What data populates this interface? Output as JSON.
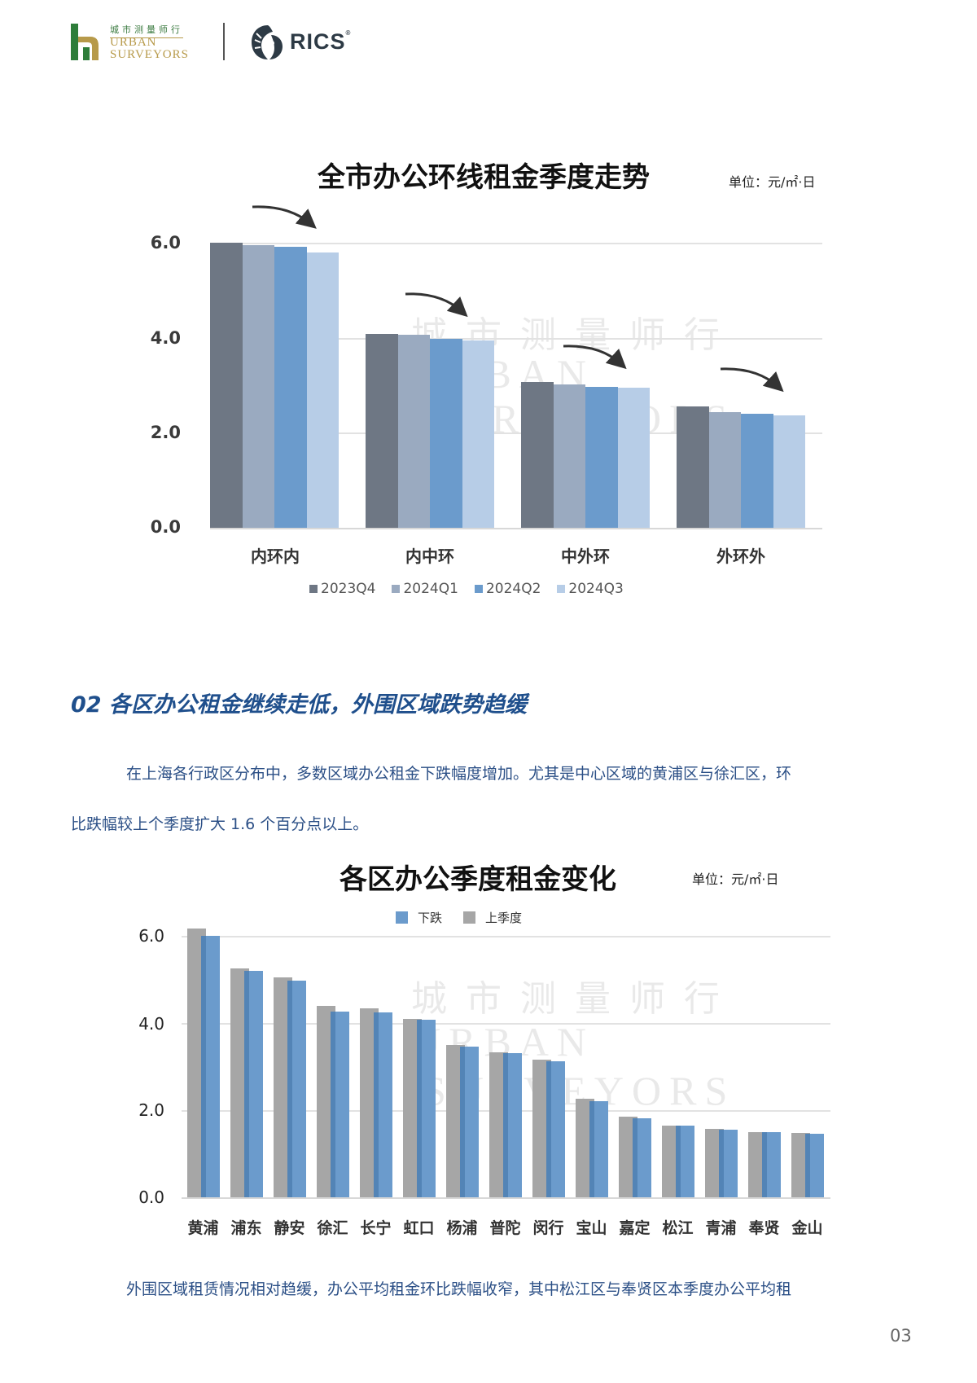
{
  "header": {
    "brand_cn": "城市测量师行",
    "brand_en_line1": "URBAN",
    "brand_en_line2": "SURVEYORS",
    "partner": "RICS",
    "partner_mark": "®",
    "colors": {
      "green": "#2e7d3a",
      "gold": "#b79a4a",
      "rics": "#2d3a45"
    }
  },
  "chart1": {
    "title": "全市办公环线租金季度走势",
    "unit": "单位：元/㎡·日",
    "yticks": [
      "6.0",
      "4.0",
      "2.0",
      "0.0"
    ]
  },
  "section": {
    "title": "02 各区办公租金继续走低，外围区域跌势趋缓",
    "para1_line1": "在上海各行政区分布中，多数区域办公租金下跌幅度增加。尤其是中心区域的黄浦区与徐汇区，环",
    "para1_line2": "比跌幅较上个季度扩大 1.6 个百分点以上。"
  },
  "chart2": {
    "title": "各区办公季度租金变化",
    "unit": "单位：元/㎡·日",
    "yticks": [
      "6.0",
      "4.0",
      "2.0",
      "0.0"
    ]
  },
  "footer": {
    "para2_line1": "外围区域租赁情况相对趋缓，办公平均租金环比跌幅收窄，其中松江区与奉贤区本季度办公平均租",
    "page_number": "03"
  },
  "watermark": {
    "cn": "城 市 测 量 师 行",
    "en1": "URBAN",
    "en2": "SURVEYORS"
  },
  "chart_data": [
    {
      "type": "bar",
      "title": "全市办公环线租金季度走势",
      "subtitle": "单位：元/㎡·日",
      "xlabel": "",
      "ylabel": "",
      "categories": [
        "内环内",
        "内中环",
        "中外环",
        "外环外"
      ],
      "series": [
        {
          "name": "2023Q4",
          "color": "#6e7784",
          "values": [
            6.0,
            4.08,
            3.06,
            2.55
          ]
        },
        {
          "name": "2024Q1",
          "color": "#9aaac0",
          "values": [
            5.95,
            4.05,
            3.01,
            2.43
          ]
        },
        {
          "name": "2024Q2",
          "color": "#6b9bcc",
          "values": [
            5.9,
            3.98,
            2.97,
            2.39
          ]
        },
        {
          "name": "2024Q3",
          "color": "#b7cde7",
          "values": [
            5.78,
            3.94,
            2.95,
            2.36
          ]
        }
      ],
      "yticks": [
        0.0,
        2.0,
        4.0,
        6.0
      ],
      "ylim": [
        0,
        6.0
      ],
      "grid": true,
      "legend_position": "bottom",
      "annotations": [
        "downward trend arrows above each category"
      ]
    },
    {
      "type": "bar",
      "title": "各区办公季度租金变化",
      "subtitle": "单位：元/㎡·日",
      "xlabel": "",
      "ylabel": "",
      "categories": [
        "黄浦",
        "浦东",
        "静安",
        "徐汇",
        "长宁",
        "虹口",
        "杨浦",
        "普陀",
        "闵行",
        "宝山",
        "嘉定",
        "松江",
        "青浦",
        "奉贤",
        "金山"
      ],
      "series": [
        {
          "name": "上季度",
          "color": "#a6a6a6",
          "values": [
            6.17,
            5.26,
            5.04,
            4.39,
            4.33,
            4.09,
            3.5,
            3.32,
            3.15,
            2.26,
            1.85,
            1.64,
            1.57,
            1.49,
            1.47
          ]
        },
        {
          "name": "下跌",
          "color": "#6b9bcc",
          "values": [
            6.0,
            5.2,
            4.97,
            4.26,
            4.24,
            4.07,
            3.45,
            3.3,
            3.13,
            2.21,
            1.81,
            1.64,
            1.56,
            1.49,
            1.45
          ]
        }
      ],
      "legend_order": [
        "下跌",
        "上季度"
      ],
      "yticks": [
        0.0,
        2.0,
        4.0,
        6.0
      ],
      "ylim": [
        0,
        6.0
      ],
      "grid": true,
      "legend_position": "top"
    }
  ]
}
